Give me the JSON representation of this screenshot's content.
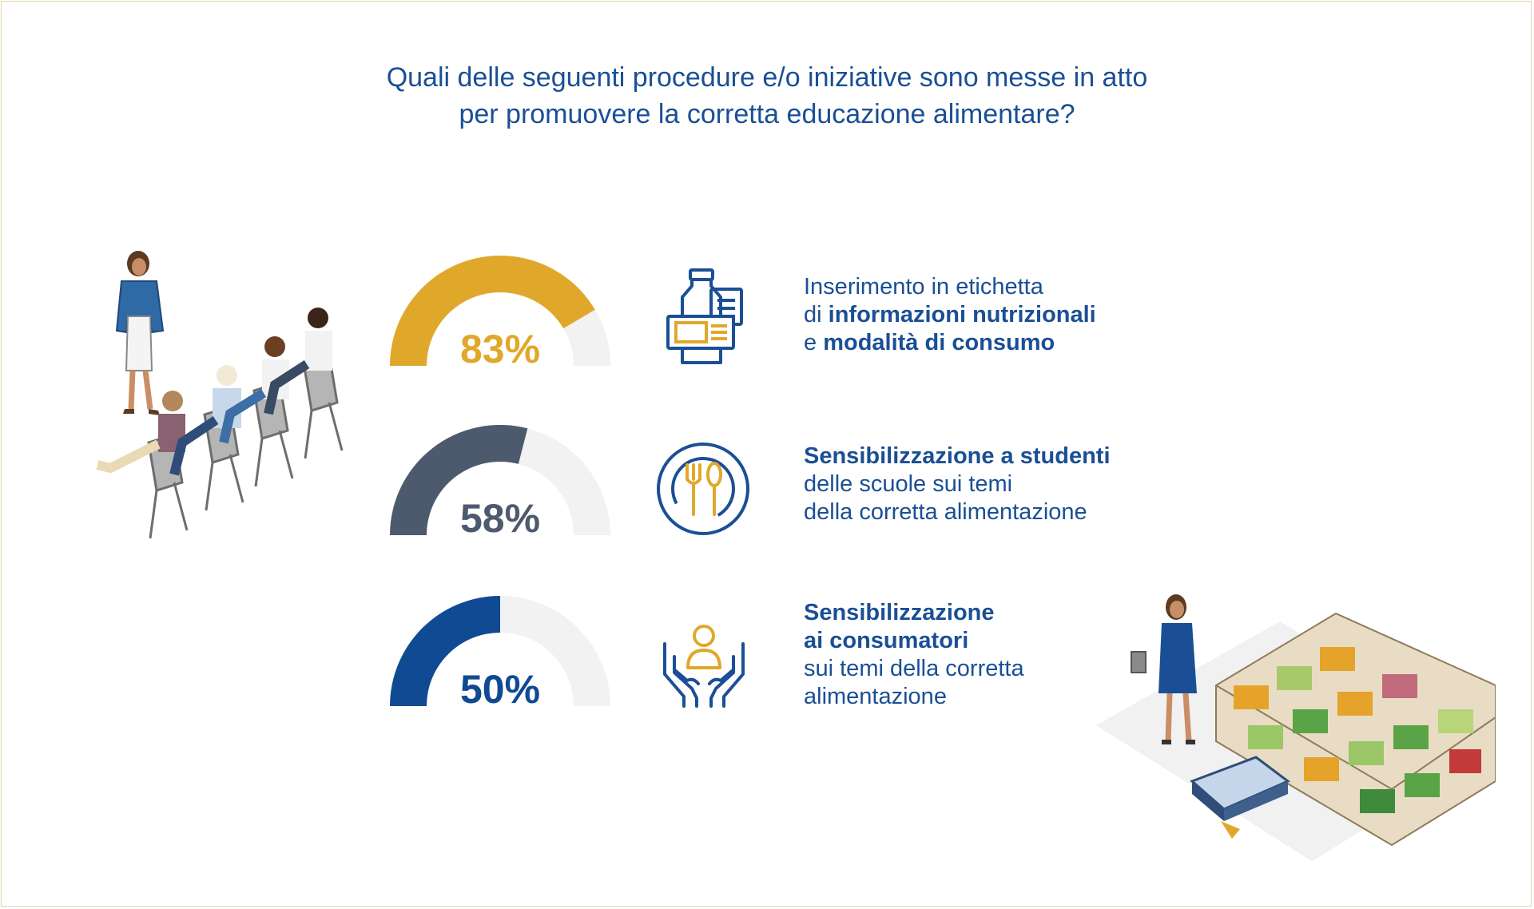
{
  "title": {
    "line1": "Quali delle seguenti procedure e/o iniziative sono messe in atto",
    "line2": "per promuovere la corretta educazione alimentare?"
  },
  "chart_data": {
    "type": "gauge",
    "categories": [
      "Inserimento in etichetta di informazioni nutrizionali e modalità di consumo",
      "Sensibilizzazione a studenti delle scuole sui temi della corretta alimentazione",
      "Sensibilizzazione ai consumatori sui temi della corretta alimentazione"
    ],
    "values": [
      83,
      58,
      50
    ],
    "labels": [
      "83%",
      "58%",
      "50%"
    ],
    "unit": "%",
    "ylim": [
      0,
      100
    ],
    "colors": [
      "#e0a82b",
      "#4d5a6e",
      "#0f4a92"
    ],
    "track_color": "#f2f2f2"
  },
  "items": [
    {
      "icon": "bottle-label-icon",
      "lines": [
        {
          "normal": "Inserimento in etichetta",
          "bold": ""
        },
        {
          "normal": "di ",
          "bold": "informazioni nutrizionali"
        },
        {
          "normal": "e ",
          "bold": "modalità di consumo"
        }
      ]
    },
    {
      "icon": "cutlery-plate-icon",
      "lines": [
        {
          "normal": "",
          "bold": "Sensibilizzazione a studenti"
        },
        {
          "normal": "delle scuole sui temi",
          "bold": ""
        },
        {
          "normal": "della corretta alimentazione",
          "bold": ""
        }
      ]
    },
    {
      "icon": "hands-person-icon",
      "lines": [
        {
          "normal": "",
          "bold": "Sensibilizzazione"
        },
        {
          "normal": "",
          "bold": "ai consumatori"
        },
        {
          "normal": "sui temi della corretta",
          "bold": ""
        },
        {
          "normal": "alimentazione",
          "bold": ""
        }
      ]
    }
  ],
  "colors": {
    "text": "#1a4f95",
    "icon_blue": "#1a4f95",
    "icon_gold": "#e0a82b"
  }
}
